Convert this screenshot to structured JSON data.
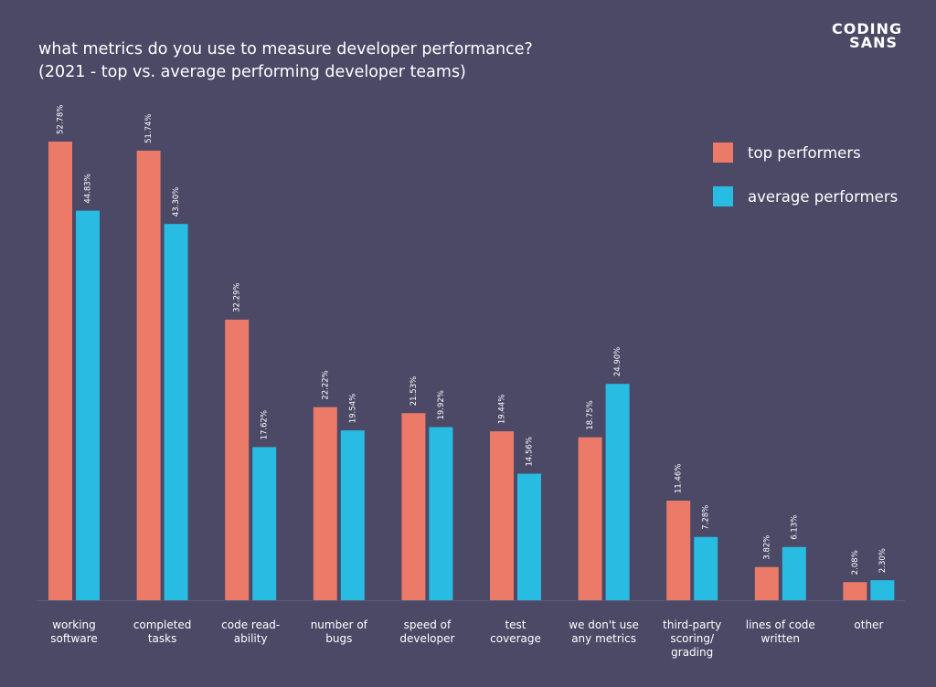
{
  "brand": {
    "logo_line1": "CODING",
    "logo_line2": "SANS"
  },
  "chart_data": {
    "type": "bar",
    "title": "what metrics do you use to measure developer performance?",
    "subtitle": "(2021 - top vs. average performing developer teams)",
    "categories": [
      [
        "working",
        "software"
      ],
      [
        "completed",
        "tasks"
      ],
      [
        "code read-",
        "ability"
      ],
      [
        "number of",
        "bugs"
      ],
      [
        "speed of",
        "developer"
      ],
      [
        "test",
        "coverage"
      ],
      [
        "we don't use",
        "any metrics"
      ],
      [
        "third-party",
        "scoring/",
        "grading"
      ],
      [
        "lines of code",
        "written"
      ],
      [
        "other"
      ]
    ],
    "series": [
      {
        "name": "top performers",
        "color": "#ec7a68",
        "values": [
          52.78,
          51.74,
          32.29,
          22.22,
          21.53,
          19.44,
          18.75,
          11.46,
          3.82,
          2.08
        ],
        "labels": [
          "52.78%",
          "51.74%",
          "32.29%",
          "22.22%",
          "21.53%",
          "19.44%",
          "18.75%",
          "11.46%",
          "3.82%",
          "2.08%"
        ]
      },
      {
        "name": "average performers",
        "color": "#29bce3",
        "values": [
          44.83,
          43.3,
          17.62,
          19.54,
          19.92,
          14.56,
          24.9,
          7.28,
          6.13,
          2.3
        ],
        "labels": [
          "44.83%",
          "43.30%",
          "17.62%",
          "19.54%",
          "19.92%",
          "14.56%",
          "24.90%",
          "7.28%",
          "6.13%",
          "2.30%"
        ]
      }
    ],
    "xlabel": "",
    "ylabel": "",
    "ylim": [
      0,
      60
    ],
    "grid": false,
    "legend_position": "top-right"
  }
}
